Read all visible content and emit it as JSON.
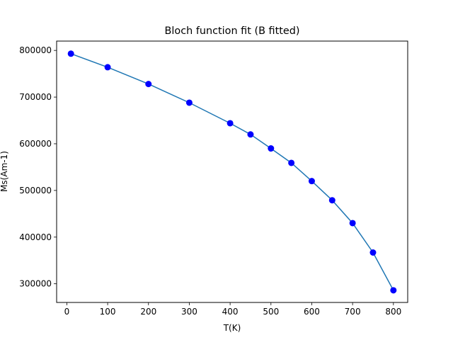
{
  "chart_data": {
    "type": "scatter",
    "title": "Bloch function fit (B fitted)",
    "xlabel": "T(K)",
    "ylabel": "Ms(Am-1)",
    "xlim": [
      -25,
      835
    ],
    "ylim": [
      260000,
      820000
    ],
    "xticks": [
      0,
      100,
      200,
      300,
      400,
      500,
      600,
      700,
      800
    ],
    "yticks": [
      300000,
      400000,
      500000,
      600000,
      700000,
      800000
    ],
    "grid": false,
    "series": [
      {
        "kind": "fit-line",
        "color": "#1f77b4",
        "x": [
          10,
          100,
          200,
          300,
          400,
          450,
          500,
          550,
          600,
          650,
          700,
          750,
          800
        ],
        "y": [
          793000,
          764000,
          728000,
          688000,
          644000,
          620000,
          590000,
          559000,
          520000,
          479000,
          430000,
          367000,
          286000
        ]
      },
      {
        "kind": "points",
        "color": "#0000ff",
        "marker": "circle",
        "x": [
          10,
          100,
          200,
          300,
          400,
          450,
          500,
          550,
          600,
          650,
          700,
          750,
          800
        ],
        "y": [
          793000,
          764000,
          728000,
          688000,
          644000,
          620000,
          590000,
          559000,
          520000,
          479000,
          430000,
          367000,
          286000
        ]
      }
    ]
  }
}
